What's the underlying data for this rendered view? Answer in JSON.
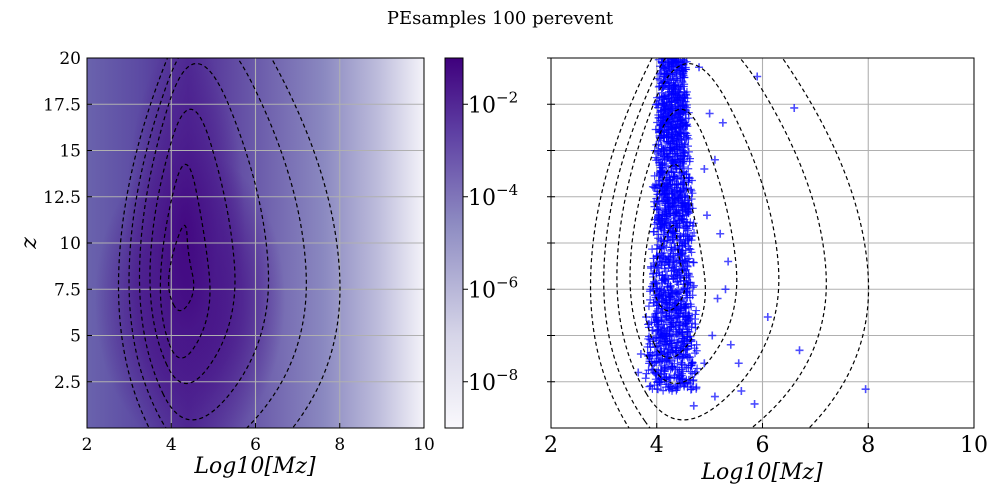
{
  "figure": {
    "title": "PEsamples 100 perevent"
  },
  "chart_data": [
    {
      "type": "heatmap",
      "panel": "left",
      "xlabel": "Log10[Mz]",
      "ylabel": "z",
      "xlim": [
        2,
        10
      ],
      "ylim": [
        0,
        20
      ],
      "x_ticks": [
        "2",
        "4",
        "6",
        "8",
        "10"
      ],
      "y_ticks": [
        "2.5",
        "5",
        "7.5",
        "10",
        "12.5",
        "15",
        "17.5",
        "20"
      ],
      "grid": true,
      "colormap": [
        "#f7f4fa",
        "#8a89c0",
        "#5a3a9e",
        "#3f007d"
      ],
      "density_peak": {
        "x": 4.3,
        "y": 7.5
      },
      "contour_style": "dashed-black",
      "colorbar": {
        "scale": "log",
        "range": [
          1e-09,
          0.1
        ],
        "tick_labels": [
          {
            "mantissa": "10",
            "exponent": "−2",
            "value": 0.01
          },
          {
            "mantissa": "10",
            "exponent": "−4",
            "value": 0.0001
          },
          {
            "mantissa": "10",
            "exponent": "−6",
            "value": 1e-06
          },
          {
            "mantissa": "10",
            "exponent": "−8",
            "value": 1e-08
          }
        ]
      }
    },
    {
      "type": "scatter",
      "panel": "right",
      "xlabel": "Log10[Mz]",
      "xlim": [
        2,
        10
      ],
      "ylim": [
        0,
        20
      ],
      "x_ticks": [
        "2",
        "4",
        "6",
        "8",
        "10"
      ],
      "grid": true,
      "marker": "+",
      "marker_color": "#0000ff",
      "contour_style": "dashed-black",
      "dense_cloud": {
        "x_range": [
          3.6,
          5.0
        ],
        "y_range": [
          2.0,
          20.0
        ],
        "center_x": 4.3
      },
      "points": [
        {
          "x": 4.7,
          "y": 1.2
        },
        {
          "x": 5.1,
          "y": 1.7
        },
        {
          "x": 5.6,
          "y": 2.0
        },
        {
          "x": 5.85,
          "y": 1.3
        },
        {
          "x": 6.1,
          "y": 6.0
        },
        {
          "x": 6.7,
          "y": 4.2
        },
        {
          "x": 7.95,
          "y": 2.1
        },
        {
          "x": 5.4,
          "y": 4.5
        },
        {
          "x": 5.55,
          "y": 3.5
        },
        {
          "x": 5.3,
          "y": 7.5
        },
        {
          "x": 3.65,
          "y": 3.0
        },
        {
          "x": 3.7,
          "y": 4.0
        },
        {
          "x": 5.9,
          "y": 19.0
        },
        {
          "x": 6.6,
          "y": 17.3
        },
        {
          "x": 5.0,
          "y": 17.0
        },
        {
          "x": 4.9,
          "y": 14.0
        },
        {
          "x": 5.2,
          "y": 10.5
        },
        {
          "x": 4.95,
          "y": 11.5
        },
        {
          "x": 5.05,
          "y": 5.0
        },
        {
          "x": 5.15,
          "y": 7.0
        },
        {
          "x": 4.75,
          "y": 2.2
        },
        {
          "x": 4.9,
          "y": 3.5
        },
        {
          "x": 3.8,
          "y": 6.0
        },
        {
          "x": 5.35,
          "y": 9.0
        },
        {
          "x": 5.1,
          "y": 14.5
        },
        {
          "x": 4.8,
          "y": 19.5
        },
        {
          "x": 5.25,
          "y": 16.5
        }
      ]
    }
  ]
}
